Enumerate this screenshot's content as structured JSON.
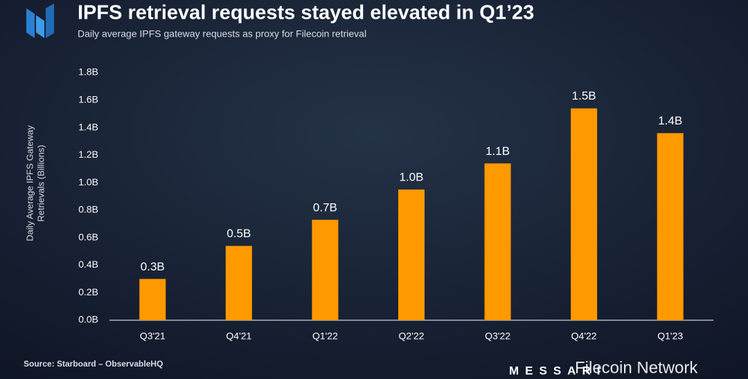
{
  "chart_data": {
    "type": "bar",
    "title": "IPFS retrieval requests stayed elevated in Q1’23",
    "subtitle": "Daily average IPFS gateway requests as proxy for Filecoin retrieval",
    "y_axis_label": [
      "Daily Average IPFS Gateway",
      "Retrievals (Billions)"
    ],
    "categories": [
      "Q3'21",
      "Q4'21",
      "Q1'22",
      "Q2'22",
      "Q3'22",
      "Q4'22",
      "Q1'23"
    ],
    "values": [
      0.3,
      0.54,
      0.73,
      0.95,
      1.14,
      1.54,
      1.36
    ],
    "value_labels": [
      "0.3B",
      "0.5B",
      "0.7B",
      "1.0B",
      "1.1B",
      "1.5B",
      "1.4B"
    ],
    "color": "#ff9900",
    "ylim": [
      0,
      1.8
    ],
    "yticks": [
      {
        "value": 0,
        "label": "0.0B"
      },
      {
        "value": 0.2,
        "label": "0.2B"
      },
      {
        "value": 0.4,
        "label": "0.4B"
      },
      {
        "value": 0.6,
        "label": "0.6B"
      },
      {
        "value": 0.8,
        "label": "0.8B"
      },
      {
        "value": 1.0,
        "label": "1.0B"
      },
      {
        "value": 1.2,
        "label": "1.2B"
      },
      {
        "value": 1.4,
        "label": "1.4B"
      },
      {
        "value": 1.6,
        "label": "1.6B"
      },
      {
        "value": 1.8,
        "label": "1.8B"
      }
    ],
    "grid": false,
    "source": "Source: Starboard – ObservableHQ",
    "brand": "MESSARI",
    "watermark": "Filecoin Network"
  }
}
